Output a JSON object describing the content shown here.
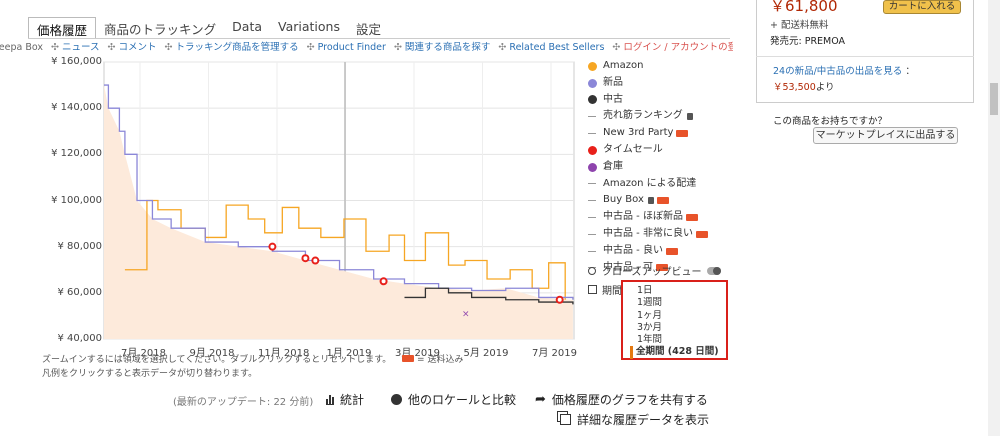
{
  "tabs": [
    {
      "label": "価格履歴",
      "active": true
    },
    {
      "label": "商品のトラッキング",
      "active": false
    },
    {
      "label": "Data",
      "active": false
    },
    {
      "label": "Variations",
      "active": false
    },
    {
      "label": "設定",
      "active": false
    }
  ],
  "links": [
    {
      "text": "Keepa Box",
      "style": "muted"
    },
    {
      "text": "ニュース",
      "style": "link"
    },
    {
      "text": "コメント",
      "style": "link"
    },
    {
      "text": "トラッキング商品を管理する",
      "style": "link"
    },
    {
      "text": "Product Finder",
      "style": "link"
    },
    {
      "text": "関連する商品を探す",
      "style": "link"
    },
    {
      "text": "Related Best Sellers",
      "style": "link"
    },
    {
      "text": "ログイン / アカウントの登録",
      "style": "red"
    }
  ],
  "link_separator": "✣",
  "chart_data": {
    "type": "line",
    "y_ticks": [
      "¥ 160,000",
      "¥ 140,000",
      "¥ 120,000",
      "¥ 100,000",
      "¥ 80,000",
      "¥ 60,000",
      "¥ 40,000"
    ],
    "ylim": [
      40000,
      160000
    ],
    "x_ticks": [
      "7月 2018",
      "9月 2018",
      "11月 2018",
      "1月 2019",
      "3月 2019",
      "5月 2019",
      "7月 2019"
    ],
    "x_range": [
      "2018-06-01",
      "2019-08-02"
    ],
    "series": [
      {
        "name": "Amazon",
        "color": "#f6a623",
        "points": [
          [
            "2018-06-20",
            70000
          ],
          [
            "2018-07-10",
            100000
          ],
          [
            "2018-07-20",
            96000
          ],
          [
            "2018-08-10",
            88000
          ],
          [
            "2018-09-01",
            84000
          ],
          [
            "2018-09-20",
            98000
          ],
          [
            "2018-10-10",
            92000
          ],
          [
            "2018-10-25",
            86000
          ],
          [
            "2018-11-10",
            97000
          ],
          [
            "2018-11-25",
            88000
          ],
          [
            "2018-12-15",
            84000
          ],
          [
            "2019-01-05",
            92000
          ],
          [
            "2019-01-25",
            78000
          ],
          [
            "2019-02-15",
            85000
          ],
          [
            "2019-03-01",
            74000
          ],
          [
            "2019-03-20",
            86000
          ],
          [
            "2019-04-10",
            72000
          ],
          [
            "2019-04-25",
            74000
          ],
          [
            "2019-05-15",
            66000
          ],
          [
            "2019-06-05",
            70000
          ],
          [
            "2019-06-25",
            62000
          ],
          [
            "2019-07-10",
            73000
          ],
          [
            "2019-07-25",
            57000
          ]
        ]
      },
      {
        "name": "新品",
        "color": "#8b87d8",
        "points": [
          [
            "2018-06-01",
            150000
          ],
          [
            "2018-06-05",
            140000
          ],
          [
            "2018-06-15",
            130000
          ],
          [
            "2018-06-20",
            120000
          ],
          [
            "2018-07-01",
            100000
          ],
          [
            "2018-07-15",
            92000
          ],
          [
            "2018-08-01",
            88000
          ],
          [
            "2018-09-01",
            82000
          ],
          [
            "2018-10-01",
            80000
          ],
          [
            "2018-11-01",
            78000
          ],
          [
            "2018-12-01",
            74000
          ],
          [
            "2019-01-01",
            70000
          ],
          [
            "2019-02-01",
            66000
          ],
          [
            "2019-03-01",
            64000
          ],
          [
            "2019-04-01",
            62000
          ],
          [
            "2019-05-01",
            61000
          ],
          [
            "2019-06-01",
            62000
          ],
          [
            "2019-07-01",
            58000
          ],
          [
            "2019-08-01",
            57000
          ]
        ]
      },
      {
        "name": "中古",
        "color": "#333333",
        "points": [
          [
            "2019-03-01",
            58000
          ],
          [
            "2019-03-20",
            62000
          ],
          [
            "2019-04-10",
            60000
          ],
          [
            "2019-05-01",
            58000
          ],
          [
            "2019-06-01",
            57000
          ],
          [
            "2019-07-01",
            56000
          ],
          [
            "2019-08-01",
            55000
          ]
        ]
      }
    ],
    "markers": [
      {
        "series": "タイムセール",
        "date": "2018-11-01",
        "value": 80000
      },
      {
        "series": "タイムセール",
        "date": "2018-12-01",
        "value": 75000
      },
      {
        "series": "タイムセール",
        "date": "2018-12-10",
        "value": 74000
      },
      {
        "series": "タイムセール",
        "date": "2019-02-10",
        "value": 65000
      },
      {
        "series": "タイムセール",
        "date": "2019-07-20",
        "value": 57000
      },
      {
        "series": "倉庫",
        "date": "2019-04-25",
        "value": 51000
      }
    ]
  },
  "legend": [
    {
      "label": "Amazon",
      "kind": "dot",
      "color": "#f6a623",
      "truck": false,
      "lock": false
    },
    {
      "label": "新品",
      "kind": "dot",
      "color": "#8b87d8",
      "truck": false,
      "lock": false
    },
    {
      "label": "中古",
      "kind": "dot",
      "color": "#333333",
      "truck": false,
      "lock": false
    },
    {
      "label": "売れ筋ランキング",
      "kind": "dash",
      "color": "#999999",
      "truck": false,
      "lock": true
    },
    {
      "label": "New 3rd Party",
      "kind": "dash",
      "color": "#999999",
      "truck": true,
      "lock": false
    },
    {
      "label": "タイムセール",
      "kind": "dot",
      "color": "#e8201a",
      "truck": false,
      "lock": false
    },
    {
      "label": "倉庫",
      "kind": "dot",
      "color": "#8e44ad",
      "truck": false,
      "lock": false
    },
    {
      "label": "Amazon による配達",
      "kind": "dash",
      "color": "#999999",
      "truck": false,
      "lock": false
    },
    {
      "label": "Buy Box",
      "kind": "dash",
      "color": "#999999",
      "truck": true,
      "lock": true
    },
    {
      "label": "中古品 - ほぼ新品",
      "kind": "dash",
      "color": "#999999",
      "truck": true,
      "lock": false
    },
    {
      "label": "中古品 - 非常に良い",
      "kind": "dash",
      "color": "#999999",
      "truck": true,
      "lock": false
    },
    {
      "label": "中古品 - 良い",
      "kind": "dash",
      "color": "#999999",
      "truck": true,
      "lock": false
    },
    {
      "label": "中古品 - 可",
      "kind": "dash",
      "color": "#999999",
      "truck": true,
      "lock": false
    }
  ],
  "closeup_label": "クローズアップビュー",
  "period_label": "期間",
  "range_options": [
    "1日",
    "1週間",
    "1ヶ月",
    "3か月",
    "1年間"
  ],
  "range_selected": "全期間 (428 日間)",
  "notes": {
    "zoom": "ズームインするには領域を選択してください。ダブルクリックするとリセットします。",
    "shipping": "= 送料込み",
    "legend_hint": "凡例をクリックすると表示データが切り替わります。"
  },
  "bottom": {
    "update": "(最新のアップデート: 22 分前)",
    "stats": "統計",
    "compare": "他のロケールと比較",
    "share": "価格履歴のグラフを共有する",
    "detail": "詳細な履歴データを表示"
  },
  "right_panel": {
    "price": "￥61,800",
    "free_shipping": "+ 配送料無料",
    "seller": "発売元: PREMOA",
    "cart_button": "カートに入れる",
    "offers_link": "24の新品/中古品の出品を見る",
    "offers_colon": "：",
    "offers_price": "￥53,500",
    "offers_suffix": "より",
    "own_question": "この商品をお持ちですか？",
    "sell_button": "マーケットプレイスに出品する"
  },
  "colors": {
    "accent_red": "#d9201a",
    "link": "#2a6fb3",
    "price_red": "#b12704",
    "area_fill": "#fdeadb"
  }
}
